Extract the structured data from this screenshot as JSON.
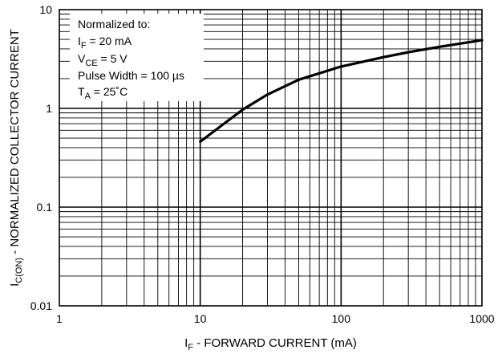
{
  "chart_data": {
    "type": "line",
    "x_scale": "log",
    "y_scale": "log",
    "xlim": [
      1,
      1000
    ],
    "ylim": [
      0.01,
      10
    ],
    "x_ticks": [
      "1",
      "10",
      "100",
      "1000"
    ],
    "y_ticks": [
      "0.01",
      "0.1",
      "1",
      "10"
    ],
    "grid": true,
    "xlabel": {
      "main": "I",
      "sub": "F",
      "rest": " - FORWARD CURRENT (mA)"
    },
    "ylabel": {
      "main": "I",
      "sub": "C(ON)",
      "rest": " - NORMALIZED COLLECTOR CURRENT"
    },
    "annotation": [
      {
        "main": "Normalized to:",
        "sub": "",
        "rest": ""
      },
      {
        "main": "I",
        "sub": "F",
        "rest": " = 20 mA"
      },
      {
        "main": "V",
        "sub": "CE",
        "rest": " = 5 V"
      },
      {
        "main": "Pulse Width = 100 µs",
        "sub": "",
        "rest": ""
      },
      {
        "main": "T",
        "sub": "A",
        "rest": " = 25˚C"
      }
    ],
    "series": [
      {
        "x": [
          10,
          20,
          30,
          50,
          100,
          200,
          300,
          500,
          1000
        ],
        "y": [
          0.46,
          0.97,
          1.38,
          1.95,
          2.65,
          3.3,
          3.7,
          4.2,
          4.9
        ]
      }
    ]
  }
}
